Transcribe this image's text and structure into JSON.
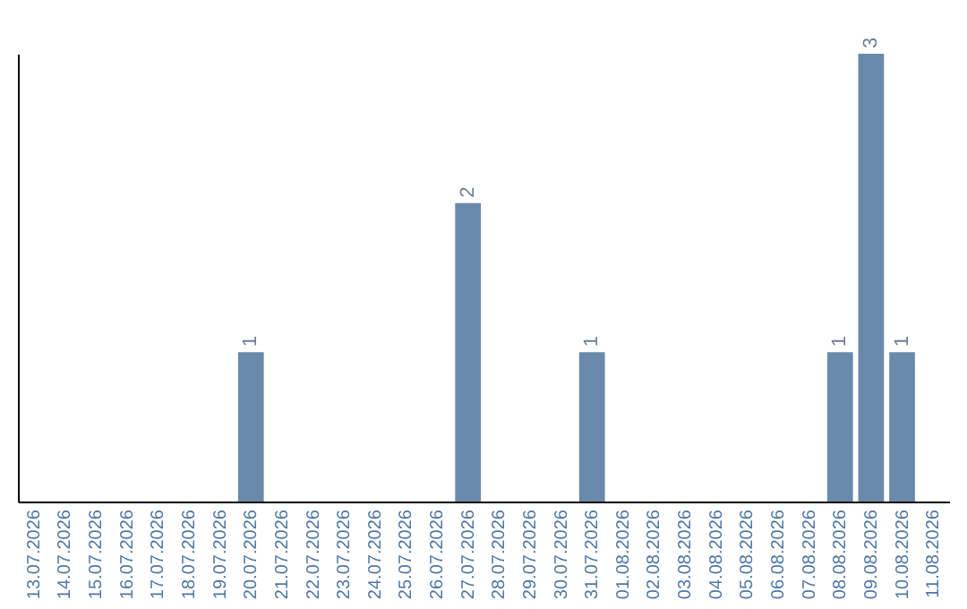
{
  "chart_data": {
    "type": "bar",
    "categories": [
      "13.07.2026",
      "14.07.2026",
      "15.07.2026",
      "16.07.2026",
      "17.07.2026",
      "18.07.2026",
      "19.07.2026",
      "20.07.2026",
      "21.07.2026",
      "22.07.2026",
      "23.07.2026",
      "24.07.2026",
      "25.07.2026",
      "26.07.2026",
      "27.07.2026",
      "28.07.2026",
      "29.07.2026",
      "30.07.2026",
      "31.07.2026",
      "01.08.2026",
      "02.08.2026",
      "03.08.2026",
      "04.08.2026",
      "05.08.2026",
      "06.08.2026",
      "07.08.2026",
      "08.08.2026",
      "09.08.2026",
      "10.08.2026",
      "11.08.2026"
    ],
    "values": [
      0,
      0,
      0,
      0,
      0,
      0,
      0,
      1,
      0,
      0,
      0,
      0,
      0,
      0,
      2,
      0,
      0,
      0,
      1,
      0,
      0,
      0,
      0,
      0,
      0,
      0,
      1,
      3,
      1,
      0
    ],
    "value_labels": [
      null,
      null,
      null,
      null,
      null,
      null,
      null,
      "1",
      null,
      null,
      null,
      null,
      null,
      null,
      "2",
      null,
      null,
      null,
      "1",
      null,
      null,
      null,
      null,
      null,
      null,
      null,
      "1",
      "3",
      "1",
      null
    ],
    "color": "#6a8aab"
  }
}
